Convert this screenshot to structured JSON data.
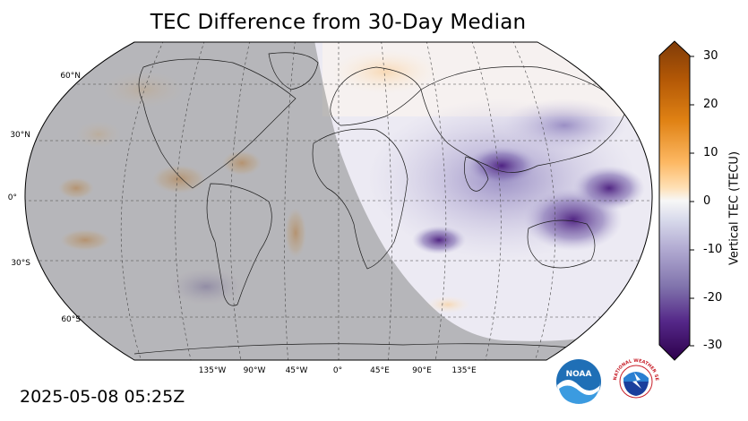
{
  "title": "TEC Difference from 30-Day Median",
  "timestamp": "2025-05-08 05:25Z",
  "colorbar": {
    "label": "Vertical TEC (TECU)",
    "ticks": [
      "30",
      "20",
      "10",
      "0",
      "-10",
      "-20",
      "-30"
    ],
    "min": -30,
    "max": 30
  },
  "lat_labels": [
    "60°N",
    "30°N",
    "0°",
    "30°S",
    "60°S"
  ],
  "lon_labels": [
    "135°W",
    "90°W",
    "45°W",
    "0°",
    "45°E",
    "90°E",
    "135°E"
  ],
  "logos": {
    "noaa_text": "NOAA",
    "nws_text": "NATIONAL WEATHER SERVICE"
  },
  "colors": {
    "night_shade": "#9a9a9a",
    "positive": "#b35806",
    "negative": "#3f0a6b",
    "neutral": "#f7f7f7"
  }
}
